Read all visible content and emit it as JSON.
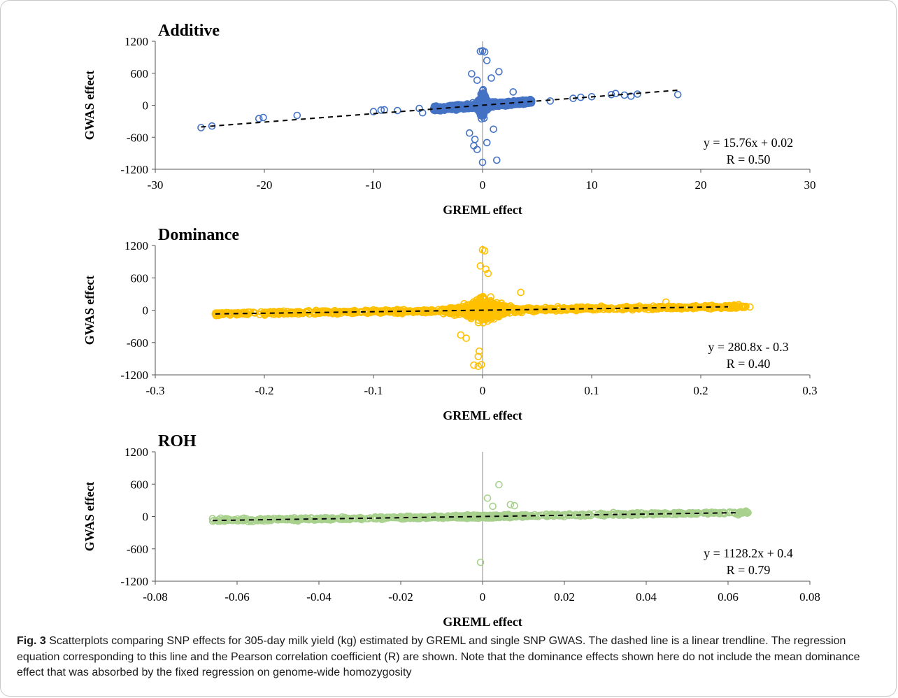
{
  "caption": {
    "label": "Fig. 3",
    "text": "Scatterplots comparing SNP effects for 305-day milk yield (kg) estimated by GREML and single SNP GWAS. The dashed line is a linear trendline. The regression equation corresponding to this line and the Pearson correlation coefficient (R) are shown. Note that the dominance effects shown here do not include the mean dominance effect that was absorbed by the fixed regression on genome-wide homozygosity"
  },
  "chart_data": [
    {
      "type": "scatter",
      "title": "Additive",
      "xlabel": "GREML effect",
      "ylabel": "GWAS effect",
      "xlim": [
        -30,
        30
      ],
      "ylim": [
        -1200,
        1200
      ],
      "xticks": [
        "-30",
        "-20",
        "-10",
        "0",
        "10",
        "20",
        "30"
      ],
      "yticks": [
        "1200",
        "600",
        "0",
        "-600",
        "-1200"
      ],
      "color": "#4472c4",
      "equation": "y = 15.76x + 0.02",
      "r_label": "R = 0.50",
      "slope": 15.76,
      "intercept": 0.02,
      "trend_x": [
        -25.8,
        17.9
      ],
      "outliers": [
        {
          "x": -25.8,
          "y": -420
        },
        {
          "x": -24.8,
          "y": -390
        },
        {
          "x": -20.5,
          "y": -250
        },
        {
          "x": -20.1,
          "y": -230
        },
        {
          "x": -17,
          "y": -190
        },
        {
          "x": -10,
          "y": -120
        },
        {
          "x": -9.3,
          "y": -90
        },
        {
          "x": -9,
          "y": -85
        },
        {
          "x": -7.8,
          "y": -100
        },
        {
          "x": -5.8,
          "y": -60
        },
        {
          "x": -5.5,
          "y": -140
        },
        {
          "x": 4.5,
          "y": 90
        },
        {
          "x": 6.2,
          "y": 80
        },
        {
          "x": 8.3,
          "y": 130
        },
        {
          "x": 9,
          "y": 150
        },
        {
          "x": 10,
          "y": 160
        },
        {
          "x": 11.8,
          "y": 200
        },
        {
          "x": 12.2,
          "y": 220
        },
        {
          "x": 13,
          "y": 190
        },
        {
          "x": 13.6,
          "y": 170
        },
        {
          "x": 14.2,
          "y": 210
        },
        {
          "x": 17.9,
          "y": 200
        },
        {
          "x": 2.8,
          "y": 250
        },
        {
          "x": -0.2,
          "y": 1010
        },
        {
          "x": 0,
          "y": 1020
        },
        {
          "x": 0.2,
          "y": 1000
        },
        {
          "x": 0.4,
          "y": 840
        },
        {
          "x": 1.5,
          "y": 630
        },
        {
          "x": -1,
          "y": 590
        },
        {
          "x": -0.5,
          "y": 470
        },
        {
          "x": 0.8,
          "y": 510
        },
        {
          "x": -0.7,
          "y": -640
        },
        {
          "x": -0.8,
          "y": -760
        },
        {
          "x": -0.5,
          "y": -830
        },
        {
          "x": 0,
          "y": -1070
        },
        {
          "x": 1.3,
          "y": -1030
        },
        {
          "x": 0.4,
          "y": -700
        },
        {
          "x": -1.2,
          "y": -520
        },
        {
          "x": 1,
          "y": -450
        }
      ],
      "cluster": {
        "x_spread": 4.5,
        "y_spread_center": 420,
        "y_spread_tail": 60,
        "count": 900
      }
    },
    {
      "type": "scatter",
      "title": "Dominance",
      "xlabel": "GREML effect",
      "ylabel": "GWAS effect",
      "xlim": [
        -0.3,
        0.3
      ],
      "ylim": [
        -1200,
        1200
      ],
      "xticks": [
        "-0.3",
        "-0.2",
        "-0.1",
        "0",
        "0.1",
        "0.2",
        "0.3"
      ],
      "yticks": [
        "1200",
        "600",
        "0",
        "-600",
        "-1200"
      ],
      "color": "#ffc000",
      "equation": "y = 280.8x - 0.3",
      "r_label": "R = 0.40",
      "slope": 280.8,
      "intercept": -0.3,
      "trend_x": [
        -0.245,
        0.225
      ],
      "outliers": [
        {
          "x": -0.245,
          "y": -70
        },
        {
          "x": -0.24,
          "y": -60
        },
        {
          "x": 0.245,
          "y": 60
        },
        {
          "x": 0.238,
          "y": 50
        },
        {
          "x": 0.23,
          "y": 70
        },
        {
          "x": 0.21,
          "y": 90
        },
        {
          "x": 0.168,
          "y": 150
        },
        {
          "x": 0.035,
          "y": 330
        },
        {
          "x": 0,
          "y": 1120
        },
        {
          "x": 0.002,
          "y": 1100
        },
        {
          "x": -0.002,
          "y": 820
        },
        {
          "x": 0.003,
          "y": 760
        },
        {
          "x": 0.005,
          "y": 680
        },
        {
          "x": -0.003,
          "y": -760
        },
        {
          "x": -0.004,
          "y": -860
        },
        {
          "x": -0.008,
          "y": -1020
        },
        {
          "x": -0.004,
          "y": -1040
        },
        {
          "x": -0.001,
          "y": -1010
        },
        {
          "x": -0.02,
          "y": -460
        },
        {
          "x": -0.015,
          "y": -520
        }
      ],
      "cluster": {
        "x_spread": 0.245,
        "y_spread_center": 380,
        "y_spread_tail": 45,
        "count": 1100
      }
    },
    {
      "type": "scatter",
      "title": "ROH",
      "xlabel": "GREML effect",
      "ylabel": "GWAS effect",
      "xlim": [
        -0.08,
        0.08
      ],
      "ylim": [
        -1200,
        1200
      ],
      "xticks": [
        "-0.08",
        "-0.06",
        "-0.04",
        "-0.02",
        "0",
        "0.02",
        "0.04",
        "0.06",
        "0.08"
      ],
      "yticks": [
        "1200",
        "600",
        "0",
        "-600",
        "-1200"
      ],
      "color": "#a9d18e",
      "equation": "y = 1128.2x + 0.4",
      "r_label": "R = 0.79",
      "slope": 1128.2,
      "intercept": 0.4,
      "trend_x": [
        -0.066,
        0.062
      ],
      "outliers": [
        {
          "x": 0.004,
          "y": 590
        },
        {
          "x": 0.0012,
          "y": 340
        },
        {
          "x": 0.0025,
          "y": 190
        },
        {
          "x": 0.0068,
          "y": 220
        },
        {
          "x": 0.0078,
          "y": 200
        },
        {
          "x": -0.0005,
          "y": -850
        },
        {
          "x": -0.066,
          "y": -40
        },
        {
          "x": -0.064,
          "y": -30
        },
        {
          "x": 0.0625,
          "y": 30
        },
        {
          "x": 0.056,
          "y": 80
        }
      ],
      "cluster": {
        "x_spread": 0.066,
        "y_spread_center": 40,
        "y_spread_tail": 35,
        "count": 1000
      }
    }
  ]
}
